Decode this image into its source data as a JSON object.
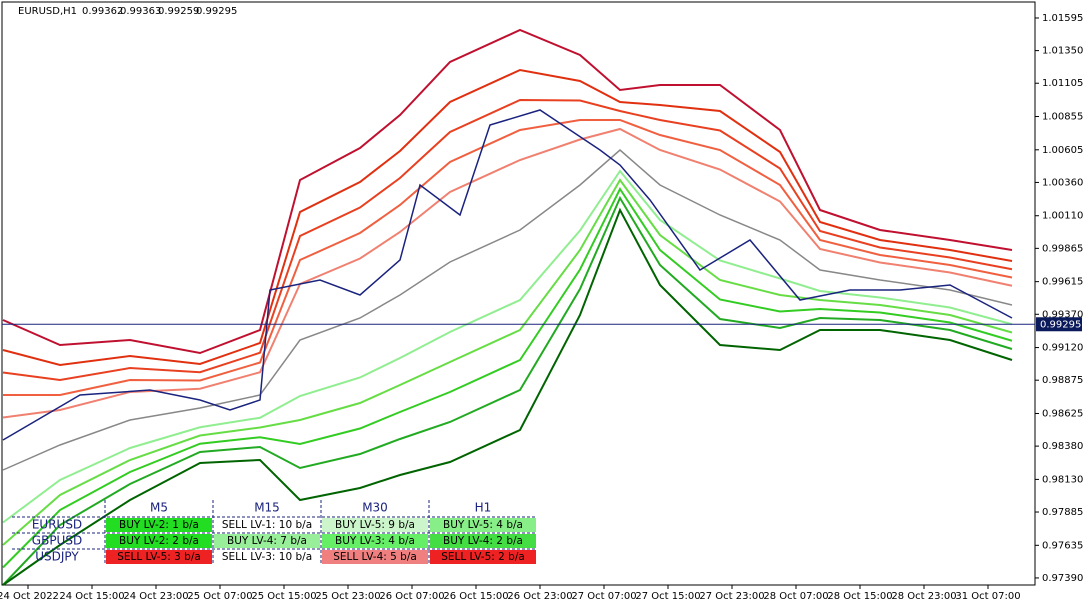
{
  "header": {
    "symbol": "EURUSD,H1",
    "ohlc": [
      0.99362,
      0.99363,
      0.99259,
      0.99295
    ]
  },
  "price_axis": {
    "ylim": [
      0.97337,
      1.01715
    ],
    "ticks": [
      1.01595,
      {
        "value": 1.0135,
        "label": "1.01350"
      },
      1.01105,
      1.00855,
      1.00605,
      {
        "value": 1.0036,
        "label": "1.00360"
      },
      {
        "value": 1.0011,
        "label": "1.00110"
      },
      0.99865,
      0.99615,
      {
        "value": 0.9937,
        "label": "0.99370"
      },
      {
        "value": 0.9912,
        "label": "0.99120"
      },
      0.98875,
      0.98625,
      {
        "value": 0.9838,
        "label": "0.98380"
      },
      {
        "value": 0.9813,
        "label": "0.98130"
      },
      0.97885,
      0.97635,
      {
        "value": 0.9739,
        "label": "0.97390"
      }
    ],
    "current": 0.99295
  },
  "time_axis": {
    "labels": [
      "24 Oct 2022",
      "24 Oct 15:00",
      "24 Oct 23:00",
      "25 Oct 07:00",
      "25 Oct 15:00",
      "25 Oct 23:00",
      "26 Oct 07:00",
      "26 Oct 15:00",
      "26 Oct 23:00",
      "27 Oct 07:00",
      "27 Oct 15:00",
      "27 Oct 23:00",
      "28 Oct 07:00",
      "28 Oct 15:00",
      "28 Oct 23:00",
      "31 Oct 07:00"
    ]
  },
  "table": {
    "columns": [
      "M5",
      "M15",
      "M30",
      "H1"
    ],
    "rows": [
      {
        "symbol": "EURUSD",
        "cells": [
          "BUY LV-2: 1 b/a",
          "SELL LV-1: 10 b/a",
          "BUY LV-5: 9 b/a",
          "BUY LV-5: 4 b/a"
        ],
        "colors": [
          "#22dd22",
          "#ffffff",
          "#ccf5cc",
          "#88ee88"
        ]
      },
      {
        "symbol": "GBPUSD",
        "cells": [
          "BUY LV-2: 2 b/a",
          "BUY LV-4: 7 b/a",
          "BUY LV-3: 4 b/a",
          "BUY LV-4: 2 b/a"
        ],
        "colors": [
          "#22dd22",
          "#99ee99",
          "#66ee66",
          "#44dd44"
        ]
      },
      {
        "symbol": "USDJPY",
        "cells": [
          "SELL LV-5: 3 b/a",
          "SELL LV-3: 10 b/a",
          "SELL LV-4: 5 b/a",
          "SELL LV-5: 2 b/a"
        ],
        "colors": [
          "#ee2222",
          "#ffffff",
          "#f08080",
          "#ee2222"
        ]
      }
    ]
  }
}
